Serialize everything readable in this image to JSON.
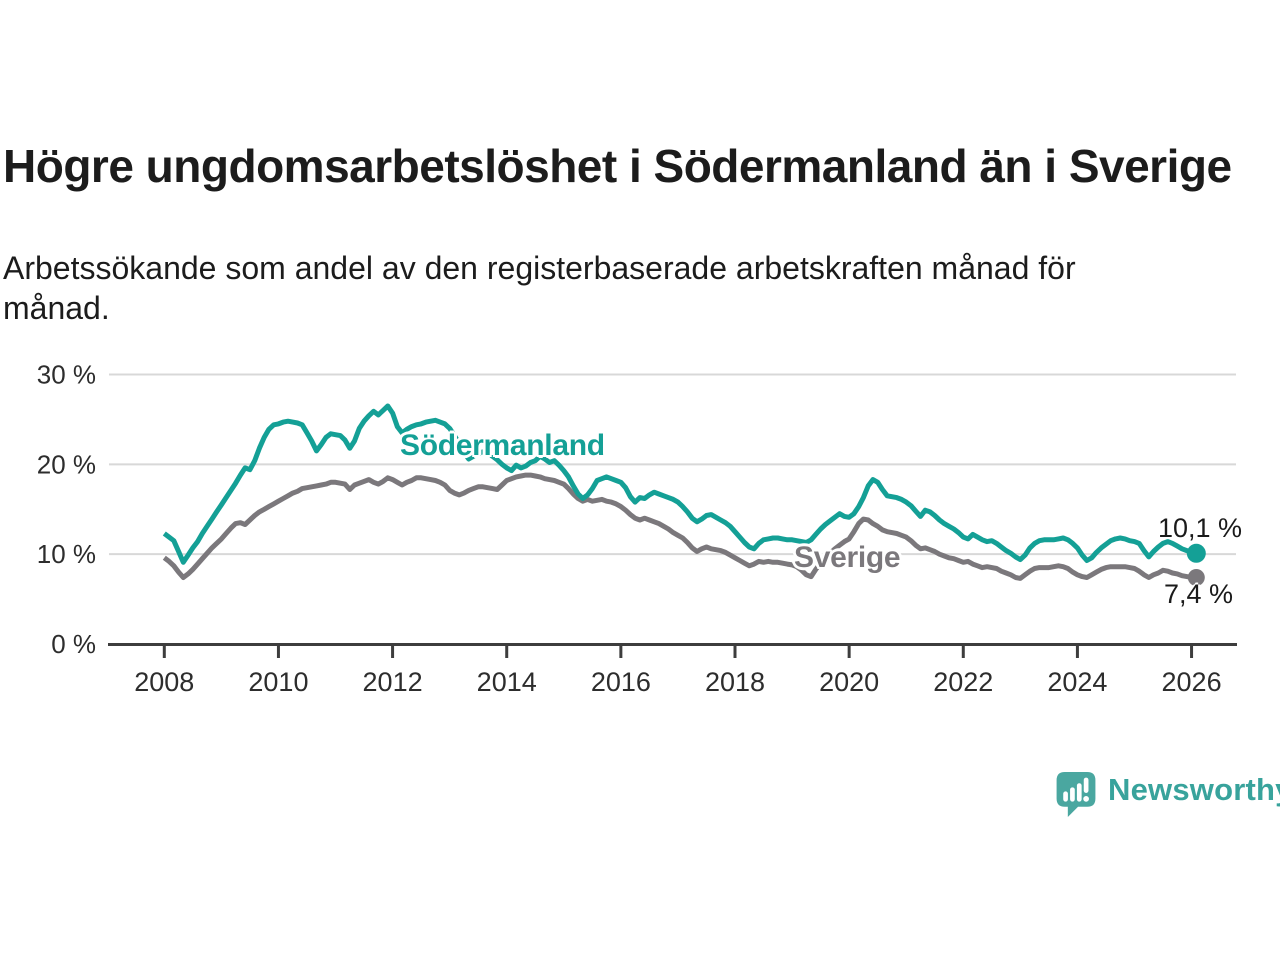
{
  "header": {
    "title": "Högre ungdomsarbetslöshet i Södermanland än i Sverige",
    "subtitle": "Arbetssökande som andel av den registerbaserade arbetskraften månad för månad."
  },
  "chart_data": {
    "type": "line",
    "title": "Högre ungdomsarbetslöshet i Södermanland än i Sverige",
    "unit": "%",
    "grid": "horizontal-only",
    "legend_position": "inline-labels-on-lines",
    "ylim": [
      0,
      30
    ],
    "xlim_years": [
      2007.0,
      2026.8
    ],
    "y_ticks": [
      {
        "value": 0,
        "label": "0 %"
      },
      {
        "value": 10,
        "label": "10 %"
      },
      {
        "value": 20,
        "label": "20 %"
      },
      {
        "value": 30,
        "label": "30 %"
      }
    ],
    "x_ticks": [
      {
        "value": 2008,
        "label": "2008"
      },
      {
        "value": 2010,
        "label": "2010"
      },
      {
        "value": 2012,
        "label": "2012"
      },
      {
        "value": 2014,
        "label": "2014"
      },
      {
        "value": 2016,
        "label": "2016"
      },
      {
        "value": 2018,
        "label": "2018"
      },
      {
        "value": 2020,
        "label": "2020"
      },
      {
        "value": 2022,
        "label": "2022"
      },
      {
        "value": 2024,
        "label": "2024"
      },
      {
        "value": 2026,
        "label": "2026"
      }
    ],
    "colors": {
      "grid": "#d8d8d8",
      "axis": "#3d3d3d",
      "axis_text": "#2d2d2d"
    },
    "series": [
      {
        "id": "sodermanland",
        "name": "Södermanland",
        "color": "#14a096",
        "end_label": "10,1 %",
        "end_value": 10.1,
        "start_year": 2008.0,
        "step_months": 1,
        "values": [
          12.3,
          11.9,
          11.5,
          10.3,
          9.1,
          9.9,
          10.7,
          11.4,
          12.3,
          13.1,
          13.9,
          14.7,
          15.5,
          16.3,
          17.1,
          17.9,
          18.8,
          19.6,
          19.4,
          20.4,
          21.8,
          23.0,
          23.9,
          24.4,
          24.5,
          24.7,
          24.8,
          24.7,
          24.6,
          24.4,
          23.5,
          22.6,
          21.5,
          22.2,
          23.0,
          23.4,
          23.3,
          23.2,
          22.7,
          21.8,
          22.6,
          24.0,
          24.8,
          25.4,
          25.9,
          25.5,
          26.0,
          26.5,
          25.7,
          24.2,
          23.5,
          23.9,
          24.2,
          24.4,
          24.5,
          24.7,
          24.8,
          24.9,
          24.7,
          24.5,
          24.0,
          23.2,
          22.3,
          21.3,
          20.6,
          20.9,
          21.2,
          21.4,
          21.2,
          20.9,
          20.5,
          20.0,
          19.6,
          19.3,
          19.9,
          19.6,
          19.8,
          20.2,
          20.4,
          20.9,
          20.6,
          20.2,
          20.4,
          19.9,
          19.3,
          18.6,
          17.6,
          16.7,
          16.2,
          16.6,
          17.3,
          18.2,
          18.4,
          18.6,
          18.4,
          18.2,
          18.0,
          17.4,
          16.4,
          15.8,
          16.3,
          16.2,
          16.6,
          16.9,
          16.7,
          16.5,
          16.3,
          16.1,
          15.8,
          15.3,
          14.7,
          14.0,
          13.6,
          13.9,
          14.3,
          14.4,
          14.1,
          13.8,
          13.5,
          13.1,
          12.5,
          11.9,
          11.3,
          10.8,
          10.6,
          11.2,
          11.6,
          11.7,
          11.8,
          11.8,
          11.7,
          11.6,
          11.6,
          11.5,
          11.4,
          11.3,
          11.6,
          12.2,
          12.8,
          13.3,
          13.7,
          14.1,
          14.5,
          14.2,
          14.1,
          14.5,
          15.3,
          16.3,
          17.6,
          18.3,
          18.0,
          17.2,
          16.5,
          16.4,
          16.3,
          16.1,
          15.8,
          15.4,
          14.8,
          14.2,
          14.9,
          14.7,
          14.3,
          13.8,
          13.4,
          13.1,
          12.8,
          12.4,
          11.9,
          11.7,
          12.2,
          11.9,
          11.6,
          11.4,
          11.5,
          11.2,
          10.8,
          10.4,
          10.1,
          9.7,
          9.4,
          9.9,
          10.7,
          11.2,
          11.5,
          11.6,
          11.6,
          11.6,
          11.7,
          11.8,
          11.6,
          11.2,
          10.7,
          9.9,
          9.3,
          9.6,
          10.2,
          10.7,
          11.1,
          11.5,
          11.7,
          11.8,
          11.7,
          11.5,
          11.4,
          11.2,
          10.4,
          9.7,
          10.3,
          10.8,
          11.2,
          11.4,
          11.2,
          10.9,
          10.6,
          10.4,
          10.2,
          10.1
        ]
      },
      {
        "id": "sverige",
        "name": "Sverige",
        "color": "#7b787c",
        "end_label": "7,4 %",
        "end_value": 7.4,
        "start_year": 2008.0,
        "step_months": 1,
        "values": [
          9.6,
          9.2,
          8.7,
          8.0,
          7.4,
          7.8,
          8.3,
          8.9,
          9.5,
          10.1,
          10.7,
          11.2,
          11.7,
          12.3,
          12.9,
          13.4,
          13.5,
          13.3,
          13.8,
          14.3,
          14.7,
          15.0,
          15.3,
          15.6,
          15.9,
          16.2,
          16.5,
          16.8,
          17.0,
          17.3,
          17.4,
          17.5,
          17.6,
          17.7,
          17.8,
          18.0,
          18.0,
          17.9,
          17.8,
          17.2,
          17.7,
          17.9,
          18.1,
          18.3,
          18.0,
          17.8,
          18.1,
          18.5,
          18.3,
          18.0,
          17.7,
          18.0,
          18.2,
          18.5,
          18.5,
          18.4,
          18.3,
          18.2,
          18.0,
          17.7,
          17.1,
          16.8,
          16.6,
          16.8,
          17.1,
          17.3,
          17.5,
          17.5,
          17.4,
          17.3,
          17.2,
          17.7,
          18.2,
          18.4,
          18.6,
          18.7,
          18.8,
          18.8,
          18.7,
          18.6,
          18.4,
          18.3,
          18.2,
          18.0,
          17.8,
          17.3,
          16.7,
          16.2,
          15.9,
          16.1,
          15.9,
          16.0,
          16.1,
          15.9,
          15.8,
          15.6,
          15.3,
          14.9,
          14.4,
          14.0,
          13.8,
          14.0,
          13.8,
          13.6,
          13.4,
          13.1,
          12.8,
          12.4,
          12.1,
          11.8,
          11.3,
          10.7,
          10.3,
          10.6,
          10.8,
          10.6,
          10.5,
          10.4,
          10.2,
          9.9,
          9.6,
          9.3,
          9.0,
          8.7,
          8.9,
          9.2,
          9.1,
          9.2,
          9.1,
          9.1,
          9.0,
          8.9,
          8.8,
          8.6,
          8.2,
          7.7,
          7.5,
          8.3,
          9.0,
          9.6,
          10.1,
          10.6,
          11.0,
          11.4,
          11.7,
          12.5,
          13.4,
          13.9,
          13.8,
          13.4,
          13.1,
          12.7,
          12.5,
          12.4,
          12.3,
          12.1,
          11.9,
          11.5,
          11.0,
          10.6,
          10.7,
          10.5,
          10.3,
          10.0,
          9.8,
          9.6,
          9.5,
          9.3,
          9.1,
          9.2,
          8.9,
          8.7,
          8.5,
          8.6,
          8.5,
          8.4,
          8.1,
          7.9,
          7.7,
          7.4,
          7.3,
          7.7,
          8.1,
          8.4,
          8.5,
          8.5,
          8.5,
          8.6,
          8.7,
          8.6,
          8.4,
          8.0,
          7.7,
          7.5,
          7.4,
          7.7,
          8.0,
          8.3,
          8.5,
          8.6,
          8.6,
          8.6,
          8.6,
          8.5,
          8.4,
          8.1,
          7.7,
          7.4,
          7.7,
          7.9,
          8.2,
          8.1,
          7.9,
          7.8,
          7.6,
          7.5,
          7.4,
          7.4
        ]
      }
    ]
  },
  "footer": {
    "brand": "Newsworthy",
    "brand_color": "#38a39c"
  }
}
